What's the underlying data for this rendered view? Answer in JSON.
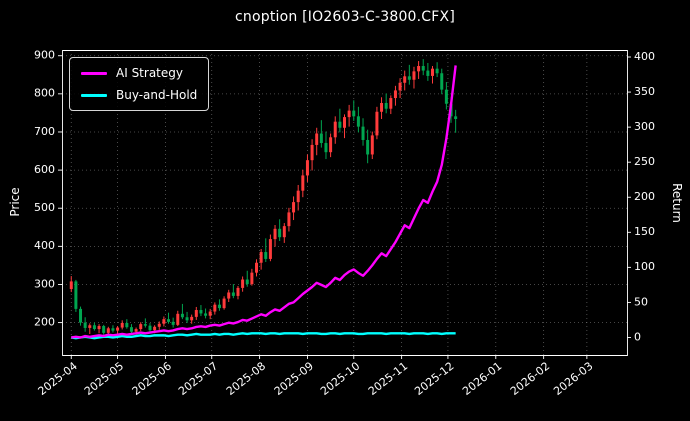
{
  "chart_data": {
    "type": "candlestick",
    "title": "cnoption [IO2603-C-3800.CFX]",
    "legend_position": "upper-left",
    "grid": {
      "style": "dotted",
      "on": true
    },
    "colors": {
      "background": "#000000",
      "text": "#ffffff",
      "spine": "#ffffff",
      "grid": "#aaaaaa",
      "up_candle": "#ff3b3b",
      "down_candle": "#00a650"
    },
    "x_axis": {
      "unit": "days-since-origin",
      "origin": "2025-04-01",
      "lim_days": [
        -6,
        360
      ],
      "ticks": [
        {
          "label": "2025-04",
          "day": 0
        },
        {
          "label": "2025-05",
          "day": 30
        },
        {
          "label": "2025-06",
          "day": 61
        },
        {
          "label": "2025-07",
          "day": 91
        },
        {
          "label": "2025-08",
          "day": 122
        },
        {
          "label": "2025-09",
          "day": 153
        },
        {
          "label": "2025-10",
          "day": 183
        },
        {
          "label": "2025-11",
          "day": 214
        },
        {
          "label": "2025-12",
          "day": 244
        },
        {
          "label": "2026-01",
          "day": 275
        },
        {
          "label": "2026-02",
          "day": 306
        },
        {
          "label": "2026-03",
          "day": 334
        }
      ]
    },
    "price_axis": {
      "label": "Price",
      "lim": [
        115,
        915
      ],
      "ticks": [
        200,
        300,
        400,
        500,
        600,
        700,
        800,
        900
      ]
    },
    "return_axis": {
      "label": "Return",
      "lim": [
        -25,
        410
      ],
      "ticks": [
        0,
        50,
        100,
        150,
        200,
        250,
        300,
        350,
        400
      ]
    },
    "candle_fields": [
      "day",
      "open",
      "high",
      "low",
      "close"
    ],
    "candles": [
      [
        0,
        288,
        322,
        280,
        308
      ],
      [
        3,
        308,
        312,
        228,
        236
      ],
      [
        6,
        236,
        242,
        192,
        200
      ],
      [
        9,
        200,
        214,
        176,
        186
      ],
      [
        12,
        186,
        198,
        170,
        193
      ],
      [
        15,
        193,
        200,
        179,
        183
      ],
      [
        18,
        183,
        196,
        172,
        191
      ],
      [
        21,
        191,
        194,
        168,
        173
      ],
      [
        24,
        173,
        189,
        166,
        185
      ],
      [
        27,
        185,
        193,
        174,
        179
      ],
      [
        30,
        179,
        191,
        170,
        187
      ],
      [
        33,
        187,
        206,
        182,
        199
      ],
      [
        36,
        199,
        209,
        184,
        188
      ],
      [
        39,
        188,
        196,
        171,
        176
      ],
      [
        42,
        176,
        187,
        168,
        183
      ],
      [
        45,
        183,
        201,
        178,
        196
      ],
      [
        48,
        196,
        211,
        187,
        192
      ],
      [
        51,
        192,
        199,
        174,
        180
      ],
      [
        54,
        180,
        193,
        172,
        189
      ],
      [
        57,
        189,
        203,
        181,
        197
      ],
      [
        60,
        197,
        216,
        190,
        209
      ],
      [
        63,
        209,
        226,
        197,
        202
      ],
      [
        66,
        202,
        213,
        187,
        194
      ],
      [
        69,
        194,
        231,
        191,
        223
      ],
      [
        72,
        223,
        249,
        209,
        214
      ],
      [
        75,
        214,
        228,
        199,
        206
      ],
      [
        78,
        206,
        221,
        197,
        215
      ],
      [
        81,
        215,
        241,
        207,
        233
      ],
      [
        84,
        233,
        246,
        217,
        224
      ],
      [
        87,
        224,
        237,
        211,
        218
      ],
      [
        90,
        218,
        236,
        209,
        229
      ],
      [
        93,
        229,
        253,
        221,
        247
      ],
      [
        96,
        247,
        261,
        231,
        238
      ],
      [
        99,
        238,
        269,
        234,
        263
      ],
      [
        102,
        263,
        286,
        254,
        279
      ],
      [
        105,
        279,
        301,
        264,
        270
      ],
      [
        108,
        270,
        296,
        261,
        291
      ],
      [
        111,
        291,
        321,
        281,
        313
      ],
      [
        114,
        313,
        336,
        294,
        301
      ],
      [
        117,
        301,
        341,
        297,
        331
      ],
      [
        120,
        331,
        366,
        321,
        357
      ],
      [
        123,
        357,
        393,
        339,
        385
      ],
      [
        126,
        385,
        421,
        359,
        367
      ],
      [
        129,
        367,
        431,
        361,
        419
      ],
      [
        132,
        419,
        456,
        399,
        446
      ],
      [
        135,
        446,
        471,
        414,
        424
      ],
      [
        138,
        424,
        461,
        409,
        453
      ],
      [
        141,
        453,
        501,
        439,
        489
      ],
      [
        144,
        489,
        531,
        469,
        516
      ],
      [
        147,
        516,
        561,
        494,
        546
      ],
      [
        150,
        546,
        601,
        529,
        586
      ],
      [
        153,
        586,
        641,
        569,
        626
      ],
      [
        156,
        626,
        681,
        599,
        666
      ],
      [
        159,
        666,
        711,
        639,
        696
      ],
      [
        162,
        696,
        731,
        659,
        671
      ],
      [
        165,
        671,
        701,
        629,
        647
      ],
      [
        168,
        647,
        696,
        634,
        686
      ],
      [
        171,
        686,
        741,
        669,
        727
      ],
      [
        174,
        727,
        761,
        699,
        711
      ],
      [
        177,
        711,
        746,
        684,
        739
      ],
      [
        180,
        739,
        771,
        714,
        756
      ],
      [
        183,
        756,
        783,
        729,
        741
      ],
      [
        186,
        741,
        766,
        699,
        714
      ],
      [
        189,
        714,
        736,
        664,
        679
      ],
      [
        192,
        679,
        706,
        618,
        641
      ],
      [
        195,
        641,
        701,
        629,
        691
      ],
      [
        198,
        691,
        766,
        681,
        753
      ],
      [
        201,
        753,
        791,
        734,
        776
      ],
      [
        204,
        776,
        801,
        749,
        761
      ],
      [
        207,
        761,
        796,
        747,
        789
      ],
      [
        210,
        789,
        821,
        769,
        809
      ],
      [
        213,
        809,
        841,
        789,
        829
      ],
      [
        216,
        829,
        861,
        809,
        846
      ],
      [
        219,
        846,
        876,
        824,
        837
      ],
      [
        222,
        837,
        871,
        814,
        859
      ],
      [
        225,
        859,
        886,
        839,
        873
      ],
      [
        228,
        873,
        891,
        849,
        861
      ],
      [
        231,
        861,
        881,
        834,
        847
      ],
      [
        234,
        847,
        873,
        827,
        866
      ],
      [
        237,
        866,
        883,
        844,
        854
      ],
      [
        240,
        854,
        866,
        799,
        811
      ],
      [
        243,
        811,
        831,
        759,
        774
      ],
      [
        246,
        774,
        791,
        724,
        741
      ],
      [
        249,
        741,
        758,
        698,
        734
      ]
    ],
    "series": [
      {
        "name": "AI Strategy",
        "axis": "return",
        "color": "#ff00ff",
        "values": [
          0,
          1,
          0,
          2,
          1,
          2,
          3,
          2,
          4,
          3,
          4,
          5,
          4,
          5,
          6,
          7,
          6,
          7,
          8,
          9,
          10,
          9,
          10,
          12,
          13,
          12,
          13,
          15,
          16,
          15,
          17,
          18,
          17,
          19,
          21,
          20,
          22,
          25,
          24,
          27,
          30,
          33,
          31,
          36,
          40,
          38,
          43,
          48,
          50,
          56,
          62,
          67,
          72,
          78,
          75,
          72,
          78,
          85,
          82,
          89,
          94,
          97,
          92,
          88,
          95,
          103,
          112,
          120,
          116,
          126,
          136,
          148,
          160,
          156,
          170,
          184,
          196,
          192,
          208,
          222,
          246,
          284,
          332,
          388
        ]
      },
      {
        "name": "Buy-and-Hold",
        "axis": "return",
        "color": "#00ffff",
        "values": [
          0,
          -1,
          0,
          1,
          0,
          -1,
          0,
          1,
          1,
          0,
          1,
          2,
          1,
          1,
          2,
          3,
          2,
          2,
          3,
          3,
          3,
          2,
          3,
          4,
          4,
          3,
          4,
          5,
          4,
          4,
          4,
          5,
          4,
          5,
          5,
          4,
          5,
          6,
          5,
          6,
          6,
          6,
          5,
          6,
          6,
          5,
          6,
          6,
          6,
          6,
          5,
          6,
          6,
          6,
          5,
          5,
          6,
          6,
          5,
          6,
          6,
          6,
          5,
          5,
          6,
          6,
          6,
          6,
          5,
          6,
          6,
          6,
          6,
          5,
          6,
          6,
          6,
          5,
          6,
          6,
          5,
          6,
          6,
          6
        ]
      }
    ]
  }
}
